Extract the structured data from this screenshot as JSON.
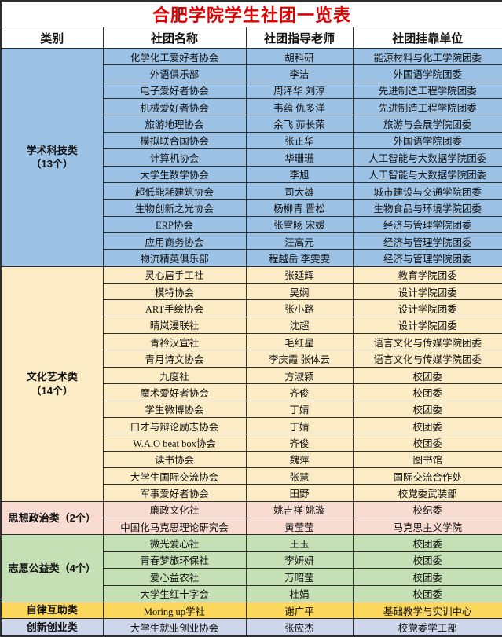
{
  "title": "合肥学院学生社团一览表",
  "title_color": "#e00000",
  "columns": [
    "类别",
    "社团名称",
    "社团指导老师",
    "社团挂靠单位"
  ],
  "categories": [
    {
      "label": "学术科技类",
      "count_label": "（13个）",
      "color": "#9cc2e5",
      "rows": [
        [
          "化学化工爱好者协会",
          "胡科研",
          "能源材料与化工学院团委"
        ],
        [
          "外语俱乐部",
          "李洁",
          "外国语学院团委"
        ],
        [
          "电子爱好者协会",
          "周泽华 刘淳",
          "先进制造工程学院团委"
        ],
        [
          "机械爱好者协会",
          "韦蕴 仇多洋",
          "先进制造工程学院团委"
        ],
        [
          "旅游地理协会",
          "余飞 茆长荣",
          "旅游与会展学院团委"
        ],
        [
          "模拟联合国协会",
          "张正华",
          "外国语学院团委"
        ],
        [
          "计算机协会",
          "华珊珊",
          "人工智能与大数据学院团委"
        ],
        [
          "大学生数学协会",
          "李旭",
          "人工智能与大数据学院团委"
        ],
        [
          "超低能耗建筑协会",
          "司大雄",
          "城市建设与交通学院团委"
        ],
        [
          "生物创新之光协会",
          "杨柳青 晋松",
          "生物食品与环境学院团委"
        ],
        [
          "ERP协会",
          "张雪旸 宋媛",
          "经济与管理学院团委"
        ],
        [
          "应用商务协会",
          "汪高元",
          "经济与管理学院团委"
        ],
        [
          "物流精英俱乐部",
          "程越岳 李雯雯",
          "经济与管理学院团委"
        ]
      ]
    },
    {
      "label": "文化艺术类",
      "count_label": "（14个）",
      "color": "#fcecc6",
      "rows": [
        [
          "灵心居手工社",
          "张延辉",
          "教育学院团委"
        ],
        [
          "模特协会",
          "吴娴",
          "设计学院团委"
        ],
        [
          "ART手绘协会",
          "张小路",
          "设计学院团委"
        ],
        [
          "晴岚漫联社",
          "沈超",
          "设计学院团委"
        ],
        [
          "青衿汉宣社",
          "毛红星",
          "语言文化与传媒学院团委"
        ],
        [
          "青月诗文协会",
          "李庆霞 张体云",
          "语言文化与传媒学院团委"
        ],
        [
          "九度社",
          "方淑颖",
          "校团委"
        ],
        [
          "魔术爱好者协会",
          "齐俊",
          "校团委"
        ],
        [
          "学生微博协会",
          "丁婧",
          "校团委"
        ],
        [
          "口才与辩论励志协会",
          "丁婧",
          "校团委"
        ],
        [
          "W.A.O beat box协会",
          "齐俊",
          "校团委"
        ],
        [
          "读书协会",
          "魏萍",
          "图书馆"
        ],
        [
          "大学生国际交流协会",
          "张慧",
          "国际交流合作处"
        ],
        [
          "军事爱好者协会",
          "田野",
          "校党委武装部"
        ]
      ]
    },
    {
      "label": "思想政治类（2个）",
      "count_label": "",
      "color": "#f8dcd1",
      "rows": [
        [
          "廉政文化社",
          "姚吉祥 姚璇",
          "校纪委"
        ],
        [
          "中国化马克思理论研究会",
          "黄莹莹",
          "马克思主义学院"
        ]
      ]
    },
    {
      "label": "志愿公益类（4个）",
      "count_label": "",
      "color": "#c5e0b4",
      "rows": [
        [
          "微光爱心社",
          "王玉",
          "校团委"
        ],
        [
          "青春梦旅环保社",
          "李妍妍",
          "校团委"
        ],
        [
          "爱心益农社",
          "万昭莹",
          "校团委"
        ],
        [
          "大学生红十字会",
          "杜娟",
          "校团委"
        ]
      ]
    },
    {
      "label": "自律互助类",
      "count_label": "",
      "color": "#fbd75b",
      "rows": [
        [
          "Moring up学社",
          "谢广平",
          "基础教学与实训中心"
        ]
      ]
    },
    {
      "label": "创新创业类",
      "count_label": "",
      "color": "#cdd6ea",
      "rows": [
        [
          "大学生就业创业协会",
          "张应杰",
          "校党委学工部"
        ]
      ]
    }
  ]
}
